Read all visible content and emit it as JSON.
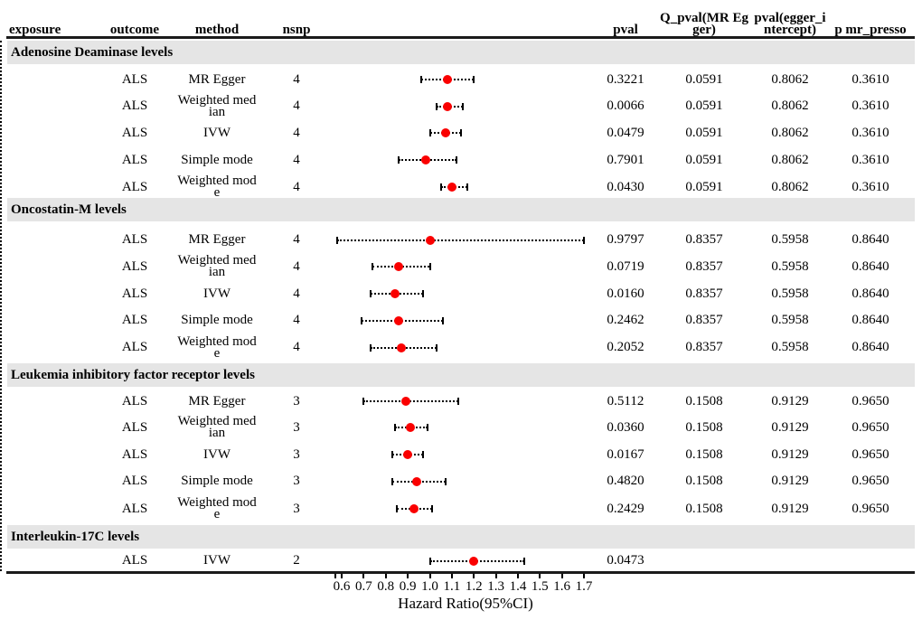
{
  "header": {
    "columns": [
      {
        "key": "exposure",
        "label": "exposure"
      },
      {
        "key": "outcome",
        "label": "outcome"
      },
      {
        "key": "method",
        "label": "method"
      },
      {
        "key": "nsnp",
        "label": "nsnp"
      },
      {
        "key": "pval",
        "label": "pval"
      },
      {
        "key": "q_pval",
        "label": "Q_pval(MR Eg\nger)"
      },
      {
        "key": "egger_pval",
        "label": "pval(egger_i\nntercept)"
      },
      {
        "key": "presso_pval",
        "label": "p mr_presso"
      }
    ]
  },
  "colors": {
    "point": "#FA0000",
    "band": "#E5E5E5",
    "rule": "#1A1A1A",
    "line": "#000000"
  },
  "chart_data": {
    "type": "scatter",
    "subtype": "forest-plot",
    "xlabel": "Hazard Ratio(95%CI)",
    "xlim": [
      0.57,
      1.73
    ],
    "x_ticks": [
      0.6,
      0.7,
      0.8,
      0.9,
      1.0,
      1.1,
      1.2,
      1.3,
      1.4,
      1.5,
      1.6,
      1.7
    ],
    "reference_line": 1.0,
    "grid": false,
    "sections": [
      {
        "title": "Adenosine Deaminase levels",
        "rows": [
          {
            "outcome": "ALS",
            "method": "MR Egger",
            "nsnp": "4",
            "hr": 1.08,
            "ci_low": 0.96,
            "ci_high": 1.2,
            "pval": "0.3221",
            "q_pval": "0.0591",
            "egger_pval": "0.8062",
            "presso_pval": "0.3610"
          },
          {
            "outcome": "ALS",
            "method": "Weighted med\nian",
            "nsnp": "4",
            "hr": 1.08,
            "ci_low": 1.03,
            "ci_high": 1.15,
            "pval": "0.0066",
            "q_pval": "0.0591",
            "egger_pval": "0.8062",
            "presso_pval": "0.3610"
          },
          {
            "outcome": "ALS",
            "method": "IVW",
            "nsnp": "4",
            "hr": 1.07,
            "ci_low": 1.0,
            "ci_high": 1.14,
            "pval": "0.0479",
            "q_pval": "0.0591",
            "egger_pval": "0.8062",
            "presso_pval": "0.3610"
          },
          {
            "outcome": "ALS",
            "method": "Simple mode",
            "nsnp": "4",
            "hr": 0.98,
            "ci_low": 0.86,
            "ci_high": 1.12,
            "pval": "0.7901",
            "q_pval": "0.0591",
            "egger_pval": "0.8062",
            "presso_pval": "0.3610"
          },
          {
            "outcome": "ALS",
            "method": "Weighted mod\ne",
            "nsnp": "4",
            "hr": 1.1,
            "ci_low": 1.05,
            "ci_high": 1.17,
            "pval": "0.0430",
            "q_pval": "0.0591",
            "egger_pval": "0.8062",
            "presso_pval": "0.3610"
          }
        ]
      },
      {
        "title": "Oncostatin-M levels",
        "rows": [
          {
            "outcome": "ALS",
            "method": "MR Egger",
            "nsnp": "4",
            "hr": 1.0,
            "ci_low": 0.58,
            "ci_high": 1.7,
            "pval": "0.9797",
            "q_pval": "0.8357",
            "egger_pval": "0.5958",
            "presso_pval": "0.8640"
          },
          {
            "outcome": "ALS",
            "method": "Weighted med\nian",
            "nsnp": "4",
            "hr": 0.86,
            "ci_low": 0.74,
            "ci_high": 1.0,
            "pval": "0.0719",
            "q_pval": "0.8357",
            "egger_pval": "0.5958",
            "presso_pval": "0.8640"
          },
          {
            "outcome": "ALS",
            "method": "IVW",
            "nsnp": "4",
            "hr": 0.84,
            "ci_low": 0.73,
            "ci_high": 0.97,
            "pval": "0.0160",
            "q_pval": "0.8357",
            "egger_pval": "0.5958",
            "presso_pval": "0.8640"
          },
          {
            "outcome": "ALS",
            "method": "Simple mode",
            "nsnp": "4",
            "hr": 0.86,
            "ci_low": 0.69,
            "ci_high": 1.06,
            "pval": "0.2462",
            "q_pval": "0.8357",
            "egger_pval": "0.5958",
            "presso_pval": "0.8640"
          },
          {
            "outcome": "ALS",
            "method": "Weighted mod\ne",
            "nsnp": "4",
            "hr": 0.87,
            "ci_low": 0.73,
            "ci_high": 1.03,
            "pval": "0.2052",
            "q_pval": "0.8357",
            "egger_pval": "0.5958",
            "presso_pval": "0.8640"
          }
        ]
      },
      {
        "title": "Leukemia inhibitory factor receptor levels",
        "rows": [
          {
            "outcome": "ALS",
            "method": "MR Egger",
            "nsnp": "3",
            "hr": 0.89,
            "ci_low": 0.7,
            "ci_high": 1.13,
            "pval": "0.5112",
            "q_pval": "0.1508",
            "egger_pval": "0.9129",
            "presso_pval": "0.9650"
          },
          {
            "outcome": "ALS",
            "method": "Weighted med\nian",
            "nsnp": "3",
            "hr": 0.91,
            "ci_low": 0.84,
            "ci_high": 0.99,
            "pval": "0.0360",
            "q_pval": "0.1508",
            "egger_pval": "0.9129",
            "presso_pval": "0.9650"
          },
          {
            "outcome": "ALS",
            "method": "IVW",
            "nsnp": "3",
            "hr": 0.9,
            "ci_low": 0.83,
            "ci_high": 0.97,
            "pval": "0.0167",
            "q_pval": "0.1508",
            "egger_pval": "0.9129",
            "presso_pval": "0.9650"
          },
          {
            "outcome": "ALS",
            "method": "Simple mode",
            "nsnp": "3",
            "hr": 0.94,
            "ci_low": 0.83,
            "ci_high": 1.07,
            "pval": "0.4820",
            "q_pval": "0.1508",
            "egger_pval": "0.9129",
            "presso_pval": "0.9650"
          },
          {
            "outcome": "ALS",
            "method": "Weighted mod\ne",
            "nsnp": "3",
            "hr": 0.93,
            "ci_low": 0.85,
            "ci_high": 1.01,
            "pval": "0.2429",
            "q_pval": "0.1508",
            "egger_pval": "0.9129",
            "presso_pval": "0.9650"
          }
        ]
      },
      {
        "title": "Interleukin-17C levels",
        "rows": [
          {
            "outcome": "ALS",
            "method": "IVW",
            "nsnp": "2",
            "hr": 1.2,
            "ci_low": 1.0,
            "ci_high": 1.43,
            "pval": "0.0473",
            "q_pval": "",
            "egger_pval": "",
            "presso_pval": ""
          }
        ]
      }
    ]
  }
}
